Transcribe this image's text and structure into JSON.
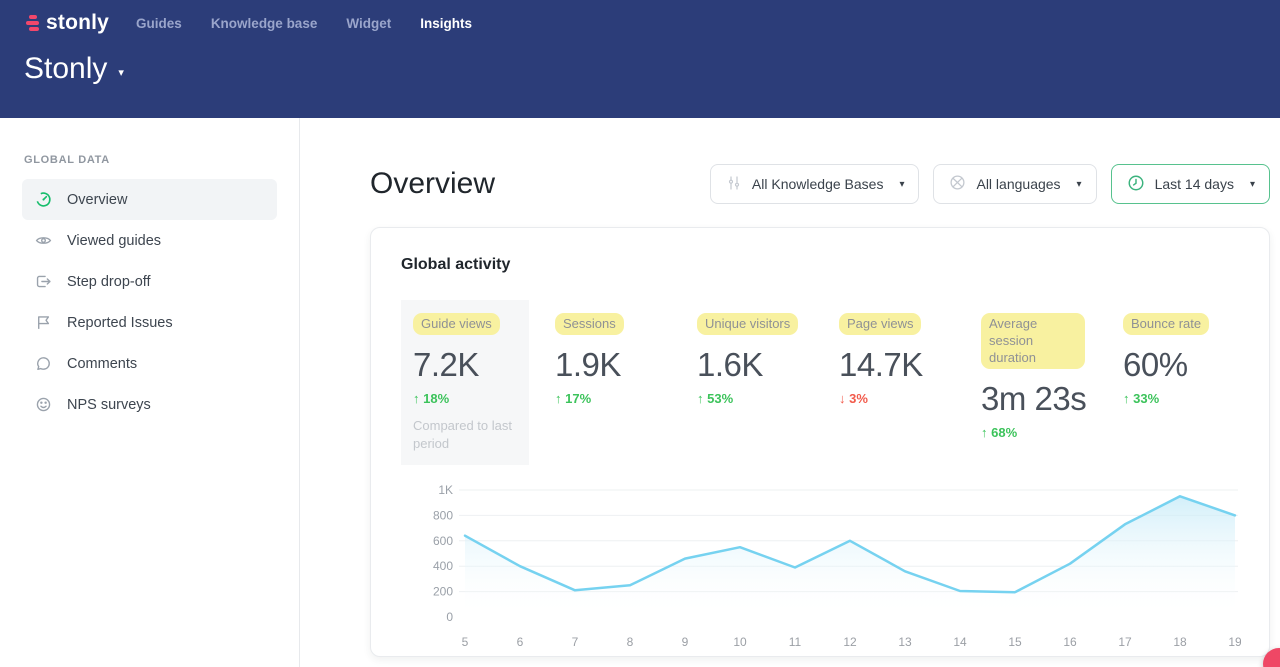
{
  "colors": {
    "header_navy": "#2c3d79",
    "brand_pink": "#f2476b",
    "positive_green": "#3cc35b",
    "negative_red": "#f25a4b",
    "highlight_yellow": "#f8f1a0",
    "filter_accent_green": "#57c28e"
  },
  "topnav": {
    "logo_text": "stonly",
    "items": [
      {
        "label": "Guides",
        "active": false
      },
      {
        "label": "Knowledge base",
        "active": false
      },
      {
        "label": "Widget",
        "active": false
      },
      {
        "label": "Insights",
        "active": true
      }
    ]
  },
  "workspace": {
    "title": "Stonly"
  },
  "sidebar": {
    "section_label": "GLOBAL DATA",
    "items": [
      {
        "label": "Overview",
        "icon": "gauge-icon",
        "active": true
      },
      {
        "label": "Viewed guides",
        "icon": "eye-icon",
        "active": false
      },
      {
        "label": "Step drop-off",
        "icon": "step-exit-icon",
        "active": false
      },
      {
        "label": "Reported Issues",
        "icon": "flag-icon",
        "active": false
      },
      {
        "label": "Comments",
        "icon": "comment-icon",
        "active": false
      },
      {
        "label": "NPS surveys",
        "icon": "smiley-icon",
        "active": false
      }
    ]
  },
  "main": {
    "page_title": "Overview",
    "filters": [
      {
        "label": "All Knowledge Bases",
        "icon": "sliders-icon",
        "accent": false
      },
      {
        "label": "All languages",
        "icon": "globe-icon",
        "accent": false
      },
      {
        "label": "Last 14 days",
        "icon": "clock-icon",
        "accent": true
      }
    ],
    "card_title": "Global activity",
    "metrics": [
      {
        "label": "Guide views",
        "value": "7.2K",
        "delta": "18%",
        "direction": "up",
        "note": "Compared to last period",
        "panel": true
      },
      {
        "label": "Sessions",
        "value": "1.9K",
        "delta": "17%",
        "direction": "up"
      },
      {
        "label": "Unique visitors",
        "value": "1.6K",
        "delta": "53%",
        "direction": "up"
      },
      {
        "label": "Page views",
        "value": "14.7K",
        "delta": "3%",
        "direction": "down"
      },
      {
        "label": "Average session duration",
        "value": "3m 23s",
        "delta": "68%",
        "direction": "up"
      },
      {
        "label": "Bounce rate",
        "value": "60%",
        "delta": "33%",
        "direction": "up"
      }
    ]
  },
  "chart_data": {
    "type": "area",
    "title": "Global activity",
    "x": [
      5,
      6,
      7,
      8,
      9,
      10,
      11,
      12,
      13,
      14,
      15,
      16,
      17,
      18,
      19
    ],
    "values": [
      640,
      400,
      210,
      250,
      460,
      550,
      390,
      600,
      360,
      205,
      195,
      420,
      730,
      950,
      800
    ],
    "xlabel": "",
    "ylabel": "",
    "ylim": [
      0,
      1000
    ],
    "y_ticks": [
      {
        "value": 1000,
        "label": "1K"
      },
      {
        "value": 800,
        "label": "800"
      },
      {
        "value": 600,
        "label": "600"
      },
      {
        "value": 400,
        "label": "400"
      },
      {
        "value": 200,
        "label": "200"
      },
      {
        "value": 0,
        "label": "0"
      }
    ],
    "grid": true,
    "legend": false,
    "line_color": "#76d2f0",
    "fill_from": "#c7ebf8",
    "fill_to": "#ffffff"
  }
}
